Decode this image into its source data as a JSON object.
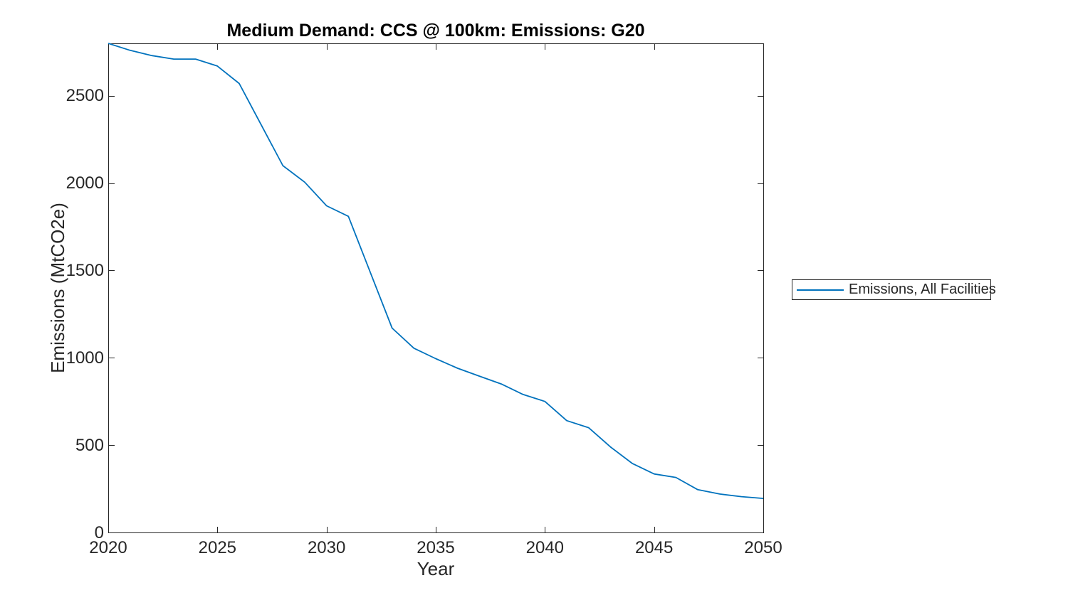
{
  "axis_color": "#262626",
  "title_color": "#000000",
  "legend": {
    "items": [
      {
        "label": "Emissions, All Facilities",
        "color": "#0072BD"
      }
    ]
  },
  "chart_data": {
    "type": "line",
    "title": "Medium Demand: CCS @ 100km: Emissions: G20",
    "xlabel": "Year",
    "ylabel": "Emissions (MtCO2e)",
    "xlim": [
      2020,
      2050
    ],
    "ylim": [
      0,
      2800
    ],
    "xticks": [
      2020,
      2025,
      2030,
      2035,
      2040,
      2045,
      2050
    ],
    "yticks": [
      0,
      500,
      1000,
      1500,
      2000,
      2500
    ],
    "grid": false,
    "box": true,
    "tick_direction": "in",
    "legend_position": "outside-right",
    "series": [
      {
        "name": "Emissions, All Facilities",
        "color": "#0072BD",
        "x": [
          2020,
          2021,
          2022,
          2023,
          2024,
          2025,
          2026,
          2027,
          2028,
          2029,
          2030,
          2031,
          2032,
          2033,
          2034,
          2035,
          2036,
          2037,
          2038,
          2039,
          2040,
          2041,
          2042,
          2043,
          2044,
          2045,
          2046,
          2047,
          2048,
          2049,
          2050
        ],
        "y": [
          2800,
          2760,
          2730,
          2710,
          2710,
          2670,
          2570,
          2335,
          2100,
          2005,
          1870,
          1810,
          1490,
          1170,
          1055,
          995,
          940,
          895,
          850,
          790,
          750,
          640,
          600,
          490,
          395,
          335,
          315,
          245,
          220,
          205,
          195
        ]
      }
    ]
  }
}
